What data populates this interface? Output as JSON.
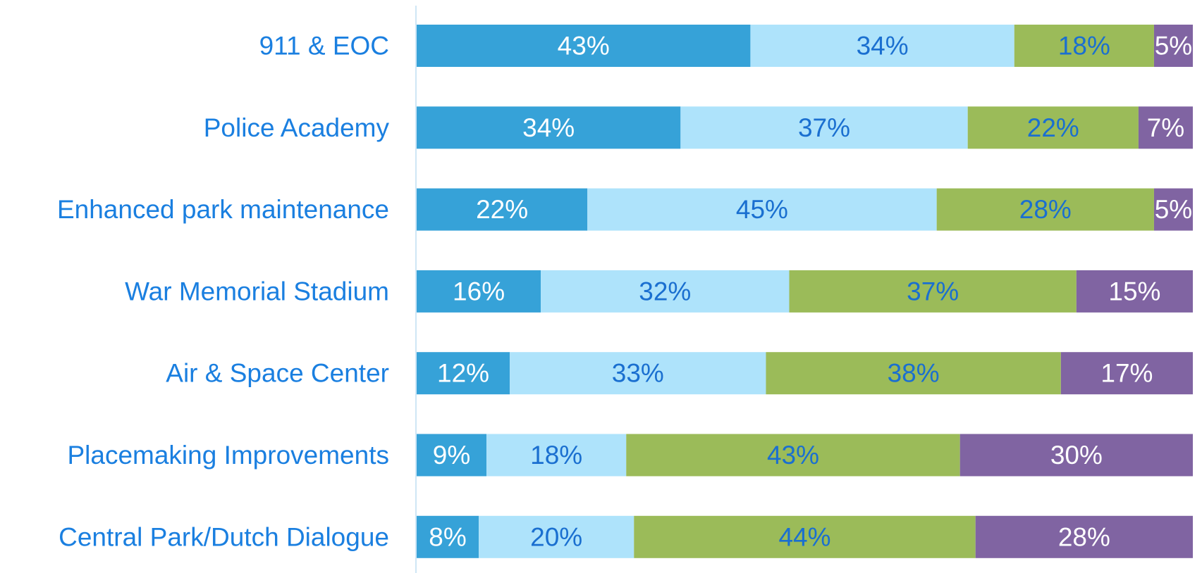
{
  "chart_data": {
    "type": "stacked-barh",
    "categories": [
      "911 & EOC",
      "Police Academy",
      "Enhanced park maintenance",
      "War Memorial Stadium",
      "Air & Space Center",
      "Placemaking Improvements",
      "Central Park/Dutch Dialogue"
    ],
    "series": [
      {
        "color": "#36a2d8",
        "values": [
          43,
          34,
          22,
          16,
          12,
          9,
          8
        ],
        "value_labels": [
          "43%",
          "34%",
          "22%",
          "16%",
          "12%",
          "9%",
          "8%"
        ]
      },
      {
        "color": "#aee3fb",
        "values": [
          34,
          37,
          45,
          32,
          33,
          18,
          20
        ],
        "value_labels": [
          "34%",
          "37%",
          "45%",
          "32%",
          "33%",
          "18%",
          "20%"
        ]
      },
      {
        "color": "#9bbb59",
        "values": [
          18,
          22,
          28,
          37,
          38,
          43,
          44
        ],
        "value_labels": [
          "18%",
          "22%",
          "28%",
          "37%",
          "38%",
          "43%",
          "44%"
        ]
      },
      {
        "color": "#8064a2",
        "values": [
          5,
          7,
          5,
          15,
          17,
          30,
          28
        ],
        "value_labels": [
          "5%",
          "7%",
          "5%",
          "15%",
          "17%",
          "30%",
          "28%"
        ]
      }
    ],
    "xlim": [
      0,
      100
    ]
  }
}
